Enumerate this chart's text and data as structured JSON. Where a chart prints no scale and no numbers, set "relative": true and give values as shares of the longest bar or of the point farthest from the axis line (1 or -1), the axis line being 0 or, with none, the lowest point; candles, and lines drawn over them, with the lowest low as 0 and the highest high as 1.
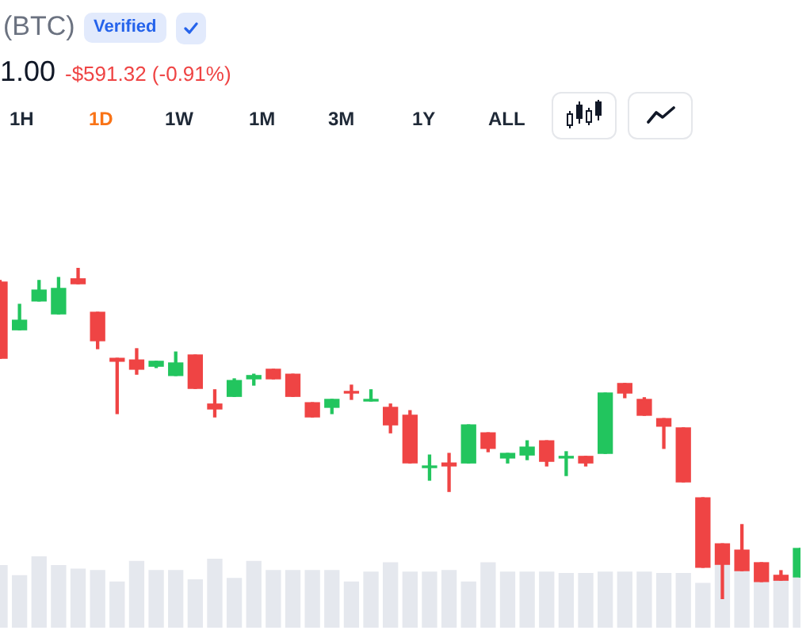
{
  "chart_data": [
    {
      "type": "candlestick",
      "title": "(BTC)",
      "annotations": [
        "Verified",
        "1.00",
        "-$591.32 (-0.91%)",
        "1H",
        "1D",
        "1W",
        "1M",
        "3M",
        "1Y",
        "ALL"
      ],
      "relative": true,
      "categories": [
        null,
        null,
        null,
        null,
        null,
        null,
        null,
        null,
        null,
        null,
        null,
        null,
        null,
        null,
        null,
        null,
        null,
        null,
        null,
        null,
        null,
        null,
        null,
        null,
        null,
        null,
        null,
        null,
        null,
        null,
        null,
        null,
        null,
        null,
        null,
        null,
        null,
        null,
        null,
        null,
        null,
        null
      ],
      "ohlc": [
        [
          0.957,
          0.962,
          0.727,
          0.727
        ],
        [
          0.813,
          0.89,
          0.813,
          0.842
        ],
        [
          0.9,
          0.962,
          0.9,
          0.933
        ],
        [
          0.861,
          0.971,
          0.861,
          0.938
        ],
        [
          0.967,
          1,
          0.952,
          0.952
        ],
        [
          0.866,
          0.866,
          0.756,
          0.78
        ],
        [
          0.727,
          0.727,
          0.56,
          0.718
        ],
        [
          0.722,
          0.756,
          0.679,
          0.694
        ],
        [
          0.703,
          0.718,
          0.699,
          0.718
        ],
        [
          0.675,
          0.746,
          0.675,
          0.713
        ],
        [
          0.737,
          0.737,
          0.636,
          0.636
        ],
        [
          0.589,
          0.632,
          0.55,
          0.574
        ],
        [
          0.612,
          0.665,
          0.612,
          0.66
        ],
        [
          0.665,
          0.679,
          0.646,
          0.675
        ],
        [
          0.694,
          0.694,
          0.665,
          0.665
        ],
        [
          0.679,
          0.679,
          0.612,
          0.612
        ],
        [
          0.593,
          0.593,
          0.55,
          0.55
        ],
        [
          0.579,
          0.603,
          0.56,
          0.603
        ],
        [
          0.627,
          0.646,
          0.603,
          0.622
        ],
        [
          0.598,
          0.632,
          0.598,
          0.603
        ],
        [
          0.579,
          0.589,
          0.502,
          0.526
        ],
        [
          0.555,
          0.569,
          0.411,
          0.411
        ],
        [
          0.397,
          0.435,
          0.359,
          0.402
        ],
        [
          0.411,
          0.44,
          0.325,
          0.402
        ],
        [
          0.411,
          0.526,
          0.411,
          0.526
        ],
        [
          0.502,
          0.502,
          0.445,
          0.455
        ],
        [
          0.426,
          0.44,
          0.411,
          0.44
        ],
        [
          0.435,
          0.478,
          0.421,
          0.459
        ],
        [
          0.478,
          0.478,
          0.402,
          0.416
        ],
        [
          0.426,
          0.445,
          0.373,
          0.431
        ],
        [
          0.431,
          0.431,
          0.402,
          0.411
        ],
        [
          0.44,
          0.622,
          0.44,
          0.622
        ],
        [
          0.651,
          0.651,
          0.608,
          0.622
        ],
        [
          0.603,
          0.608,
          0.555,
          0.555
        ],
        [
          0.545,
          0.545,
          0.455,
          0.522
        ],
        [
          0.517,
          0.517,
          0.354,
          0.354
        ],
        [
          0.306,
          0.306,
          0.096,
          0.096
        ],
        [
          0.167,
          0.167,
          0,
          0.105
        ],
        [
          0.148,
          0.225,
          0.086,
          0.086
        ],
        [
          0.11,
          0.11,
          0.053,
          0.053
        ],
        [
          0.072,
          0.086,
          0.057,
          0.057
        ],
        [
          0.067,
          0.153,
          0.067,
          0.153
        ]
      ],
      "colors": [
        "#ef4444",
        "#22c55e",
        "#22c55e",
        "#22c55e",
        "#ef4444",
        "#ef4444",
        "#ef4444",
        "#ef4444",
        "#22c55e",
        "#22c55e",
        "#ef4444",
        "#ef4444",
        "#22c55e",
        "#22c55e",
        "#ef4444",
        "#ef4444",
        "#ef4444",
        "#22c55e",
        "#ef4444",
        "#22c55e",
        "#ef4444",
        "#ef4444",
        "#22c55e",
        "#ef4444",
        "#22c55e",
        "#ef4444",
        "#22c55e",
        "#22c55e",
        "#ef4444",
        "#22c55e",
        "#ef4444",
        "#22c55e",
        "#ef4444",
        "#ef4444",
        "#ef4444",
        "#ef4444",
        "#ef4444",
        "#ef4444",
        "#ef4444",
        "#ef4444",
        "#ef4444",
        "#22c55e"
      ]
    },
    {
      "type": "bar",
      "relative": true,
      "categories": [
        null,
        null,
        null,
        null,
        null,
        null,
        null,
        null,
        null,
        null,
        null,
        null,
        null,
        null,
        null,
        null,
        null,
        null,
        null,
        null,
        null,
        null,
        null,
        null,
        null,
        null,
        null,
        null,
        null,
        null,
        null,
        null,
        null,
        null,
        null,
        null,
        null,
        null,
        null,
        null,
        null,
        null
      ],
      "values": [
        0.87,
        0.73,
        1,
        0.87,
        0.82,
        0.8,
        0.64,
        0.93,
        0.8,
        0.8,
        0.67,
        0.96,
        0.69,
        0.93,
        0.8,
        0.8,
        0.8,
        0.8,
        0.64,
        0.78,
        0.91,
        0.78,
        0.78,
        0.8,
        0.64,
        0.91,
        0.78,
        0.78,
        0.78,
        0.76,
        0.76,
        0.78,
        0.78,
        0.78,
        0.76,
        0.76,
        0.62,
        0.89,
        0.8,
        0.64,
        0.69,
        0.71
      ],
      "color": "#e5e8ee"
    }
  ]
}
